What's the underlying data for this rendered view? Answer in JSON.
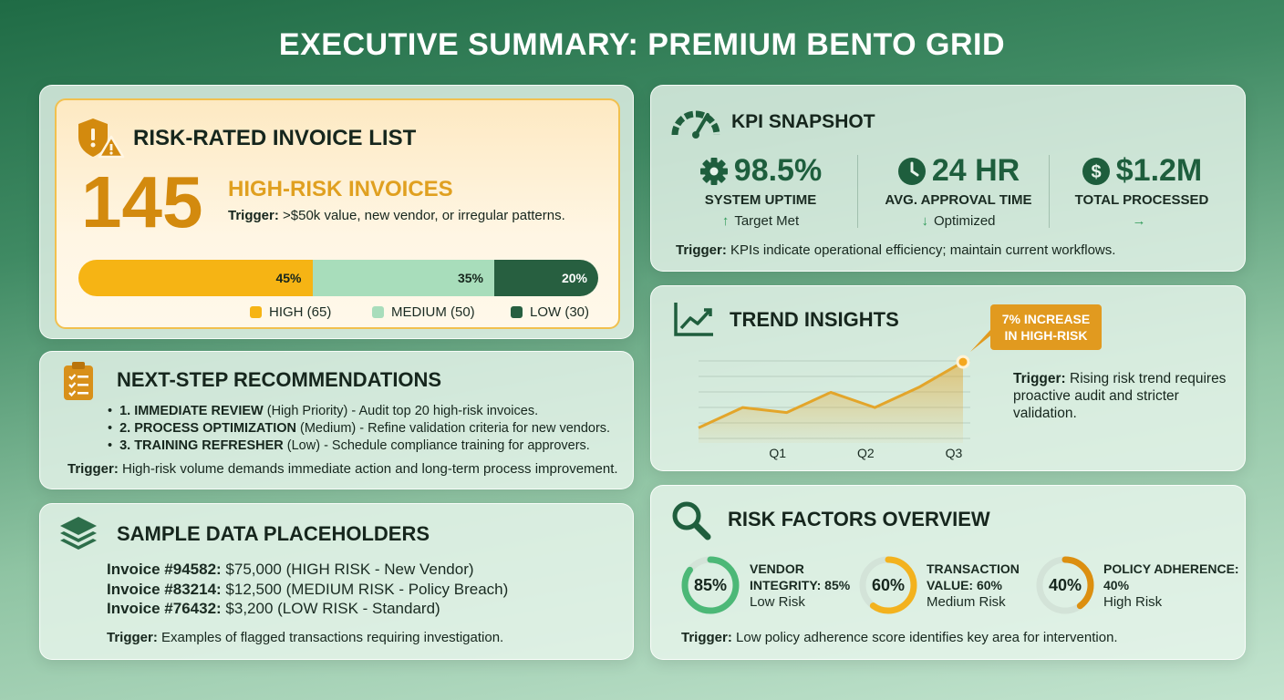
{
  "page_title": "EXECUTIVE SUMMARY: PREMIUM BENTO GRID",
  "risk_card": {
    "title": "RISK-RATED INVOICE LIST",
    "count": "145",
    "label": "HIGH-RISK INVOICES",
    "trigger_prefix": "Trigger:",
    "trigger_text": " >$50k value, new vendor, or irregular patterns.",
    "bar": [
      {
        "label": "45%",
        "value": 45,
        "color": "#f6b414"
      },
      {
        "label": "35%",
        "value": 35,
        "color": "#a8ddbb"
      },
      {
        "label": "20%",
        "value": 20,
        "color": "#275f40"
      }
    ],
    "legend": [
      {
        "label": "HIGH (65)",
        "color": "#f6b414"
      },
      {
        "label": "MEDIUM (50)",
        "color": "#a8ddbb"
      },
      {
        "label": "LOW (30)",
        "color": "#275f40"
      }
    ]
  },
  "recommendations": {
    "title": "NEXT-STEP RECOMMENDATIONS",
    "items": [
      {
        "bold": "1. IMMEDIATE REVIEW",
        "text": " (High Priority) - Audit top 20 high-risk invoices."
      },
      {
        "bold": "2. PROCESS OPTIMIZATION",
        "text": " (Medium) - Refine validation criteria for new vendors."
      },
      {
        "bold": "3. TRAINING REFRESHER",
        "text": " (Low) - Schedule compliance training for approvers."
      }
    ],
    "trigger_prefix": "Trigger:",
    "trigger_text": " High-risk volume demands immediate action and long-term process improvement."
  },
  "sample_data": {
    "title": "SAMPLE DATA PLACEHOLDERS",
    "invoices": [
      {
        "id": "Invoice #94582:",
        "detail": " $75,000 (HIGH RISK - New Vendor)"
      },
      {
        "id": "Invoice #83214:",
        "detail": " $12,500 (MEDIUM RISK - Policy Breach)"
      },
      {
        "id": "Invoice #76432:",
        "detail": " $3,200 (LOW RISK - Standard)"
      }
    ],
    "trigger_prefix": "Trigger:",
    "trigger_text": " Examples of flagged transactions requiring investigation."
  },
  "kpi": {
    "title": "KPI SNAPSHOT",
    "items": [
      {
        "value": "98.5%",
        "label": "SYSTEM UPTIME",
        "sub": "Target Met",
        "arrow": "↑",
        "icon": "gear-icon"
      },
      {
        "value": "24 HR",
        "label": "AVG. APPROVAL TIME",
        "sub": "Optimized",
        "arrow": "↓",
        "icon": "clock-icon"
      },
      {
        "value": "$1.2M",
        "label": "TOTAL PROCESSED",
        "sub": "",
        "arrow": "→",
        "icon": "dollar-icon"
      }
    ],
    "trigger_prefix": "Trigger:",
    "trigger_text": " KPIs indicate operational efficiency; maintain current workflows."
  },
  "trend": {
    "title": "TREND INSIGHTS",
    "callout_line1": "7% INCREASE",
    "callout_line2": "IN HIGH-RISK",
    "trigger_prefix": "Trigger:",
    "trigger_line1": " Rising risk trend requires",
    "trigger_line2": "proactive audit and stricter",
    "trigger_line3": "validation.",
    "chart_data": {
      "type": "area",
      "x_ticks": [
        "Q1",
        "Q2",
        "Q3"
      ],
      "points": [
        0.0,
        0.5,
        1.0,
        1.5,
        2.0,
        2.5,
        3.0
      ],
      "values": [
        3,
        7,
        6,
        10,
        7,
        11,
        16
      ],
      "ylim": [
        0,
        18
      ],
      "grid": true,
      "color": "#e3a52a"
    }
  },
  "factors": {
    "title": "RISK FACTORS OVERVIEW",
    "items": [
      {
        "pct": "85%",
        "value": 85,
        "name1": "VENDOR",
        "name2": "INTEGRITY: 85%",
        "level": "Low Risk",
        "color": "#4cb877"
      },
      {
        "pct": "60%",
        "value": 60,
        "name1": "TRANSACTION",
        "name2": "VALUE: 60%",
        "level": "Medium Risk",
        "color": "#f3b21e"
      },
      {
        "pct": "40%",
        "value": 40,
        "name1": "POLICY ADHERENCE:",
        "name2": "40%",
        "level": "High Risk",
        "color": "#dc8f10"
      }
    ],
    "trigger_prefix": "Trigger:",
    "trigger_text": " Low policy adherence score identifies key area for intervention."
  }
}
